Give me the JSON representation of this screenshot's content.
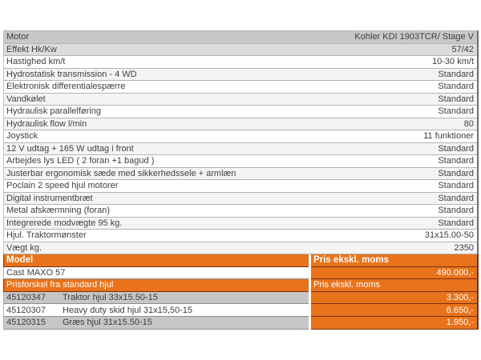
{
  "colors": {
    "orange": "#e8731a",
    "orange_border": "#7b2f10",
    "motor_row_gray": "#c8c8c8",
    "sub_row_gray": "#dcdcdc",
    "option_row_gray": "#c6c6c6",
    "text_dark": "#3f3f3f",
    "text_white": "#ffffff"
  },
  "spec_table": {
    "rows": [
      {
        "label": "Motor",
        "value": "Kohler KDI 1903TCR/ Stage V"
      },
      {
        "label": "Effekt Hk/Kw",
        "value": "57/42"
      },
      {
        "label": "Hastighed km/t",
        "value": "10-30 km/t"
      },
      {
        "label": "Hydrostatisk transmission - 4 WD",
        "value": "Standard"
      },
      {
        "label": "Elektronisk differentialespærre",
        "value": "Standard"
      },
      {
        "label": "Vandkølet",
        "value": "Standard"
      },
      {
        "label": "Hydraulisk parallelføring",
        "value": "Standard"
      },
      {
        "label": "Hydraulisk flow l/min",
        "value": "80"
      },
      {
        "label": "Joystick",
        "value": "11 funktioner"
      },
      {
        "label": "12 V udtag + 165 W udtag i front",
        "value": "Standard"
      },
      {
        "label": "Arbejdes lys LED ( 2 foran  +1 bagud )",
        "value": "Standard"
      },
      {
        "label": "Justerbar ergonomisk sæde med sikkerhedssele + armlæn",
        "value": "Standard"
      },
      {
        "label": "Poclain 2 speed hjul motorer",
        "value": "Standard"
      },
      {
        "label": "Digital instrumentbræt",
        "value": "Standard"
      },
      {
        "label": "Metal afskærmning (foran)",
        "value": "Standard"
      },
      {
        "label": "Integrerede modvægte 95 kg.",
        "value": "Standard"
      },
      {
        "label": "Hjul. Traktormønster",
        "value": "31x15.00-50"
      },
      {
        "label": "Vægt kg.",
        "value": "2350"
      }
    ]
  },
  "price_table": {
    "model_header": {
      "label": "Model",
      "price_label": "Pris ekskl. moms"
    },
    "model_row": {
      "name": "Cast MAXO 57",
      "price": "490.000,-"
    },
    "options_header": {
      "label": "Prisforskel fra standard hjul",
      "price_label": "Pris ekskl. moms"
    },
    "option_rows": [
      {
        "sku": "45120347",
        "description": "Traktor hjul 33x15.50-15",
        "price": "3.300,-"
      },
      {
        "sku": "45120307",
        "description": "Heavy duty skid hjul 31x15,50-15",
        "price": "6.650,-"
      },
      {
        "sku": "45120315",
        "description": "Græs hjul 31x15.50-15",
        "price": "1.950,-"
      }
    ]
  }
}
